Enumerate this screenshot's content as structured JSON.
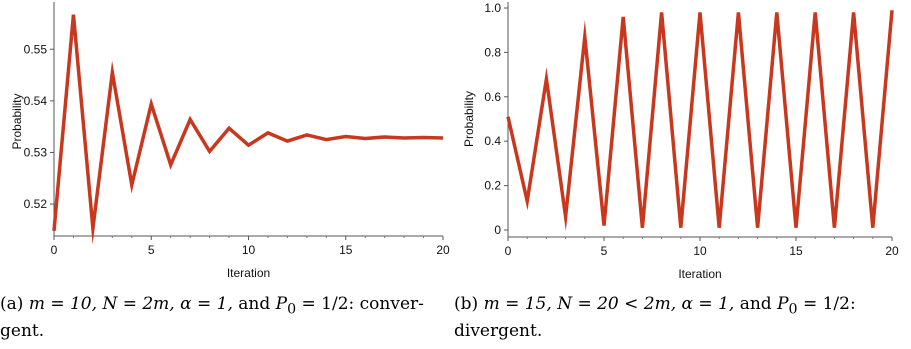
{
  "chart_data": [
    {
      "type": "line",
      "xlabel": "Iteration",
      "ylabel": "Probability",
      "xlim": [
        0,
        20
      ],
      "ylim": [
        0.514,
        0.558
      ],
      "xticks": [
        0,
        5,
        10,
        15,
        20
      ],
      "yticks": [
        0.52,
        0.53,
        0.54,
        0.55
      ],
      "ytick_labels": [
        "0.52",
        "0.53",
        "0.54",
        "0.55"
      ],
      "color": "#c8381e",
      "x": [
        0,
        1,
        2,
        3,
        4,
        5,
        6,
        7,
        8,
        9,
        10,
        11,
        12,
        13,
        14,
        15,
        16,
        17,
        18,
        19,
        20
      ],
      "series": [
        {
          "values": [
            0.5148,
            0.5567,
            0.5153,
            0.5455,
            0.5237,
            0.5394,
            0.5276,
            0.5364,
            0.5302,
            0.5347,
            0.5314,
            0.5338,
            0.5322,
            0.5334,
            0.5325,
            0.5331,
            0.5327,
            0.533,
            0.5328,
            0.5329,
            0.5328
          ]
        }
      ],
      "caption": "(a) m = 10, N = 2m, α = 1, and P₀ = 1/2: convergent."
    },
    {
      "type": "line",
      "xlabel": "Iteration",
      "ylabel": "Probability",
      "xlim": [
        0,
        20
      ],
      "ylim": [
        0,
        1.0
      ],
      "xticks": [
        0,
        5,
        10,
        15,
        20
      ],
      "yticks": [
        0,
        0.2,
        0.4,
        0.6,
        0.8,
        1.0
      ],
      "ytick_labels": [
        "0",
        "0.2",
        "0.4",
        "0.6",
        "0.8",
        "1.0"
      ],
      "color": "#c8381e",
      "x": [
        0,
        1,
        2,
        3,
        4,
        5,
        6,
        7,
        8,
        9,
        10,
        11,
        12,
        13,
        14,
        15,
        16,
        17,
        18,
        19,
        20
      ],
      "series": [
        {
          "values": [
            0.51,
            0.13,
            0.68,
            0.06,
            0.87,
            0.02,
            0.96,
            0.01,
            0.98,
            0.01,
            0.98,
            0.01,
            0.98,
            0.01,
            0.98,
            0.01,
            0.98,
            0.01,
            0.98,
            0.01,
            0.99
          ]
        }
      ],
      "caption": "(b) m = 15, N = 20 < 2m, α = 1, and P₀ = 1/2: divergent."
    }
  ],
  "captions": {
    "a": {
      "prefix": "(a) ",
      "m_eq": "m = 10, ",
      "n_eq": "N = 2m, ",
      "alpha_eq": "α = 1, ",
      "and": "and ",
      "p0": "P",
      "p0_sub": "0",
      "p0_val": " = 1/2: ",
      "result": "conver-gent."
    },
    "b": {
      "prefix": "(b) ",
      "m_eq": "m = 15, ",
      "n_eq": "N = 20 < 2m, ",
      "alpha_eq": "α = 1, ",
      "and": "and ",
      "p0": "P",
      "p0_sub": "0",
      "p0_val": " = 1/2: ",
      "result": "divergent."
    }
  }
}
